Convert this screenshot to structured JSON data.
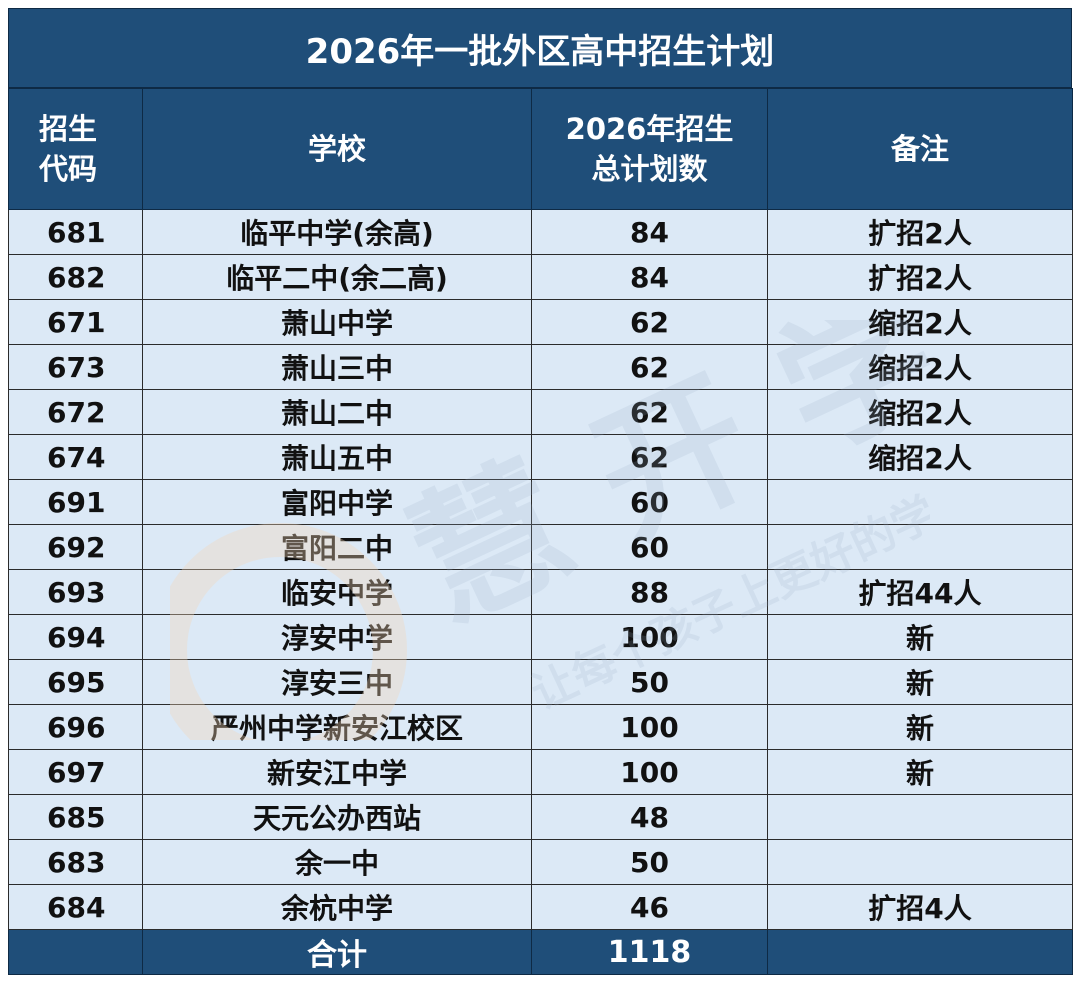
{
  "title": "2026年一批外区高中招生计划",
  "headers": {
    "code": "招生\n代码",
    "school": "学校",
    "plan": "2026年招生\n总计划数",
    "note": "备注"
  },
  "rows": [
    {
      "code": "681",
      "school": "临平中学(余高)",
      "plan": "84",
      "note": "扩招2人"
    },
    {
      "code": "682",
      "school": "临平二中(余二高)",
      "plan": "84",
      "note": "扩招2人"
    },
    {
      "code": "671",
      "school": "萧山中学",
      "plan": "62",
      "note": "缩招2人"
    },
    {
      "code": "673",
      "school": "萧山三中",
      "plan": "62",
      "note": "缩招2人"
    },
    {
      "code": "672",
      "school": "萧山二中",
      "plan": "62",
      "note": "缩招2人"
    },
    {
      "code": "674",
      "school": "萧山五中",
      "plan": "62",
      "note": "缩招2人"
    },
    {
      "code": "691",
      "school": "富阳中学",
      "plan": "60",
      "note": ""
    },
    {
      "code": "692",
      "school": "富阳二中",
      "plan": "60",
      "note": ""
    },
    {
      "code": "693",
      "school": "临安中学",
      "plan": "88",
      "note": "扩招44人"
    },
    {
      "code": "694",
      "school": "淳安中学",
      "plan": "100",
      "note": "新"
    },
    {
      "code": "695",
      "school": "淳安三中",
      "plan": "50",
      "note": "新"
    },
    {
      "code": "696",
      "school": "严州中学新安江校区",
      "plan": "100",
      "note": "新"
    },
    {
      "code": "697",
      "school": "新安江中学",
      "plan": "100",
      "note": "新"
    },
    {
      "code": "685",
      "school": "天元公办西站",
      "plan": "48",
      "note": ""
    },
    {
      "code": "683",
      "school": "余一中",
      "plan": "50",
      "note": ""
    },
    {
      "code": "684",
      "school": "余杭中学",
      "plan": "46",
      "note": "扩招4人"
    }
  ],
  "total": {
    "label": "合计",
    "value": "1118"
  },
  "watermark": {
    "text": "慧 开 学",
    "slogan": "让每个孩子上更好的学"
  },
  "colors": {
    "header_bg": "#1f4e79",
    "cell_bg": "#dce9f6",
    "text": "#111111"
  }
}
